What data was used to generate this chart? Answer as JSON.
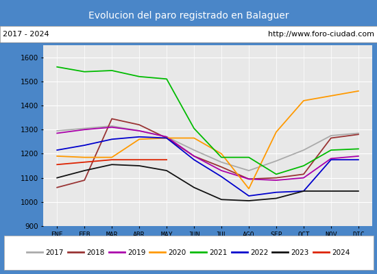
{
  "title": "Evolucion del paro registrado en Balaguer",
  "subtitle_left": "2017 - 2024",
  "subtitle_right": "http://www.foro-ciudad.com",
  "title_bg_color": "#4a86c8",
  "title_text_color": "white",
  "ylim": [
    900,
    1650
  ],
  "yticks": [
    900,
    1000,
    1100,
    1200,
    1300,
    1400,
    1500,
    1600
  ],
  "months": [
    "ENE",
    "FEB",
    "MAR",
    "ABR",
    "MAY",
    "JUN",
    "JUL",
    "AGO",
    "SEP",
    "OCT",
    "NOV",
    "DIC"
  ],
  "series": {
    "2017": {
      "color": "#aaaaaa",
      "data": [
        1295,
        1305,
        1315,
        1295,
        1270,
        1215,
        1165,
        1130,
        1170,
        1215,
        1275,
        1285
      ]
    },
    "2018": {
      "color": "#993333",
      "data": [
        1060,
        1090,
        1345,
        1320,
        1265,
        1190,
        1145,
        1095,
        1100,
        1115,
        1265,
        1280
      ]
    },
    "2019": {
      "color": "#aa00aa",
      "data": [
        1285,
        1300,
        1310,
        1295,
        1270,
        1190,
        1130,
        1095,
        1090,
        1100,
        1180,
        1190
      ]
    },
    "2020": {
      "color": "#ff9900",
      "data": [
        1190,
        1185,
        1185,
        1260,
        1265,
        1265,
        1200,
        1055,
        1290,
        1420,
        1440,
        1460
      ]
    },
    "2021": {
      "color": "#00bb00",
      "data": [
        1560,
        1540,
        1545,
        1520,
        1510,
        1305,
        1185,
        1185,
        1115,
        1150,
        1215,
        1220
      ]
    },
    "2022": {
      "color": "#0000cc",
      "data": [
        1215,
        1235,
        1260,
        1270,
        1265,
        1175,
        1105,
        1025,
        1040,
        1045,
        1175,
        1175
      ]
    },
    "2023": {
      "color": "#111111",
      "data": [
        1100,
        1130,
        1155,
        1150,
        1130,
        1060,
        1010,
        1005,
        1015,
        1045,
        1045,
        1045
      ]
    },
    "2024": {
      "color": "#dd2200",
      "data": [
        1155,
        1165,
        1175,
        1175,
        1175,
        null,
        null,
        null,
        null,
        null,
        null,
        null
      ]
    }
  }
}
